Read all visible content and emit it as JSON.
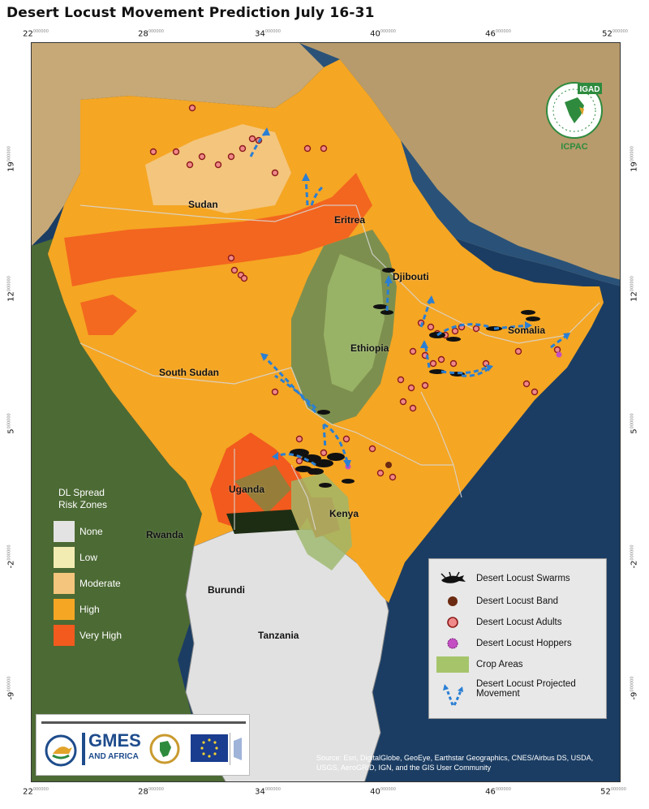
{
  "title": "Desert Locust Movement Prediction July 16-31",
  "lon_ticks": [
    {
      "value": "22",
      "suffix": "000000"
    },
    {
      "value": "28",
      "suffix": "000000"
    },
    {
      "value": "34",
      "suffix": "000000"
    },
    {
      "value": "40",
      "suffix": "000000"
    },
    {
      "value": "46",
      "suffix": "000000"
    },
    {
      "value": "52",
      "suffix": "000000"
    }
  ],
  "lat_ticks": [
    {
      "value": "19",
      "suffix": "000000"
    },
    {
      "value": "12",
      "suffix": "000000"
    },
    {
      "value": "5",
      "suffix": "000000"
    },
    {
      "value": "-2",
      "suffix": "000000"
    },
    {
      "value": "-9",
      "suffix": "000000"
    }
  ],
  "countries": {
    "sudan": "Sudan",
    "eritrea": "Eritrea",
    "djibouti": "Djibouti",
    "somalia": "Somalia",
    "ethiopia": "Ethiopia",
    "south_sudan": "South Sudan",
    "uganda": "Uganda",
    "kenya": "Kenya",
    "rwanda": "Rwanda",
    "burundi": "Burundi",
    "tanzania": "Tanzania"
  },
  "risk_legend": {
    "title_line1": "DL Spread",
    "title_line2": "Risk Zones",
    "items": [
      {
        "label": "None",
        "color": "#e3e3e3"
      },
      {
        "label": "Low",
        "color": "#f2ecb2"
      },
      {
        "label": "Moderate",
        "color": "#f4c57c"
      },
      {
        "label": "High",
        "color": "#f5a623"
      },
      {
        "label": "Very High",
        "color": "#f25a1e"
      }
    ]
  },
  "symbol_legend": {
    "swarms": "Desert Locust Swarms",
    "band": "Desert Locust Band",
    "adults": "Desert Locust Adults",
    "hoppers": "Desert Locust Hoppers",
    "crop": "Crop Areas",
    "movement_line1": "Desert Locust Projected",
    "movement_line2": "Movement"
  },
  "colors": {
    "sea": "#1b3d63",
    "land": "#6f7a4a",
    "high": "#f5a623",
    "very_high": "#f25a1e",
    "moderate": "#f4c57c",
    "tanzania": "#e1e1e1",
    "crop": "#a6c56b",
    "adult_fill": "#f08a8a",
    "adult_stroke": "#8b1a1a",
    "band": "#6b2a12",
    "hopper": "#c34fc3",
    "arrow": "#2a7fd4"
  },
  "logos": {
    "gmes_line1": "GMES",
    "gmes_line2": "AND AFRICA",
    "igad": "IGAD",
    "icpac": "ICPAC"
  },
  "source_text": "Source: Esri, DigitalGlobe, GeoEye, Earthstar Geographics, CNES/Airbus DS, USDA, USGS, AeroGRID, IGN, and the GIS User Community"
}
